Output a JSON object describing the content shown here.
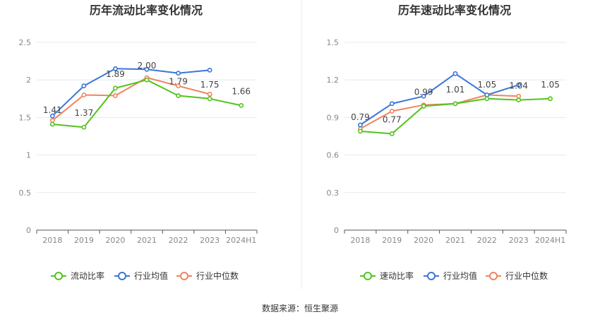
{
  "source": "数据来源：恒生聚源",
  "colors": {
    "company": "#52c41a",
    "avg": "#3a76d8",
    "median": "#f0845f",
    "grid": "#e6e8f2",
    "axis": "#555555",
    "tick": "#888888"
  },
  "chart_data": [
    {
      "type": "line",
      "title": "历年流动比率变化情况",
      "categories": [
        "2018",
        "2019",
        "2020",
        "2021",
        "2022",
        "2023",
        "2024H1"
      ],
      "ylim": [
        0,
        2.5
      ],
      "yticks": [
        "0",
        "0.5",
        "1",
        "1.5",
        "2",
        "2.5"
      ],
      "grid": true,
      "legend_position": "bottom",
      "series": [
        {
          "name": "流动比率",
          "key": "company",
          "values": [
            1.41,
            1.37,
            1.89,
            2.0,
            1.79,
            1.75,
            1.66
          ],
          "labels": [
            "1.41",
            "1.37",
            "1.89",
            "2.00",
            "1.79",
            "1.75",
            "1.66"
          ]
        },
        {
          "name": "行业均值",
          "key": "avg",
          "values": [
            1.52,
            1.92,
            2.15,
            2.14,
            2.09,
            2.13,
            null
          ]
        },
        {
          "name": "行业中位数",
          "key": "median",
          "values": [
            1.46,
            1.8,
            1.79,
            2.03,
            1.92,
            1.81,
            null
          ]
        }
      ]
    },
    {
      "type": "line",
      "title": "历年速动比率变化情况",
      "categories": [
        "2018",
        "2019",
        "2020",
        "2021",
        "2022",
        "2023",
        "2024H1"
      ],
      "ylim": [
        0,
        1.5
      ],
      "yticks": [
        "0",
        "0.3",
        "0.6",
        "0.9",
        "1.2",
        "1.5"
      ],
      "grid": true,
      "legend_position": "bottom",
      "series": [
        {
          "name": "速动比率",
          "key": "company",
          "values": [
            0.79,
            0.77,
            0.99,
            1.01,
            1.05,
            1.04,
            1.05
          ],
          "labels": [
            "0.79",
            "0.77",
            "0.99",
            "1.01",
            "1.05",
            "1.04",
            "1.05"
          ]
        },
        {
          "name": "行业均值",
          "key": "avg",
          "values": [
            0.84,
            1.01,
            1.07,
            1.25,
            1.08,
            1.16,
            null
          ]
        },
        {
          "name": "行业中位数",
          "key": "median",
          "values": [
            0.81,
            0.95,
            1.0,
            1.01,
            1.08,
            1.07,
            null
          ]
        }
      ]
    }
  ]
}
